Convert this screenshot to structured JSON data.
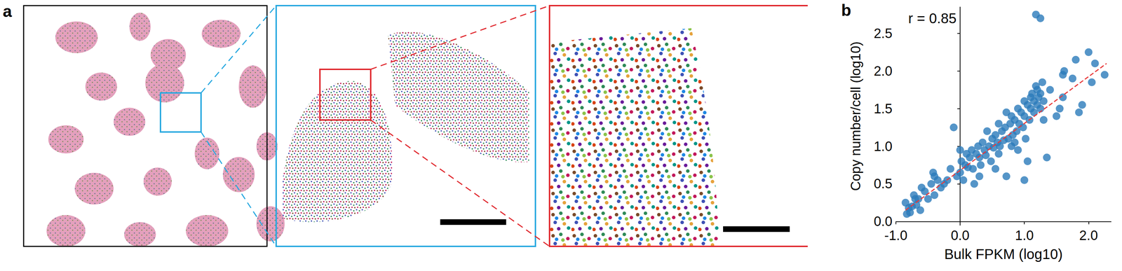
{
  "panel_labels": [
    "a",
    "b"
  ],
  "chart_data": {
    "type": "scatter",
    "x_label": "Bulk FPKM (log10)",
    "y_label": "Copy number/cell (log10)",
    "annotations": [
      "r = 0.85"
    ],
    "color": "#2b7bba",
    "marker": "circle",
    "grid": false,
    "x": [
      -0.85,
      -0.83,
      -0.78,
      -0.75,
      -0.72,
      -0.7,
      -0.68,
      -0.62,
      -0.6,
      -0.55,
      -0.5,
      -0.45,
      -0.42,
      -0.4,
      -0.35,
      -0.3,
      -0.25,
      -0.2,
      -0.15,
      -0.1,
      -0.05,
      0.0,
      0.02,
      0.05,
      0.08,
      0.1,
      0.12,
      0.15,
      0.18,
      0.2,
      0.22,
      0.25,
      0.28,
      0.3,
      0.32,
      0.35,
      0.38,
      0.4,
      0.42,
      0.45,
      0.48,
      0.5,
      0.52,
      0.55,
      0.58,
      0.6,
      0.6,
      0.62,
      0.65,
      0.68,
      0.7,
      0.72,
      0.72,
      0.75,
      0.78,
      0.8,
      0.8,
      0.82,
      0.85,
      0.88,
      0.9,
      0.9,
      0.92,
      0.95,
      0.98,
      1.0,
      1.0,
      1.02,
      1.05,
      1.05,
      1.08,
      1.1,
      1.1,
      1.12,
      1.15,
      1.15,
      1.18,
      1.18,
      1.2,
      1.2,
      1.22,
      1.25,
      1.25,
      1.25,
      1.28,
      1.3,
      1.3,
      1.35,
      1.4,
      1.5,
      1.55,
      1.6,
      1.6,
      1.62,
      1.75,
      1.8,
      1.85,
      1.9,
      2.0,
      2.05,
      2.1,
      2.25,
      -0.8,
      -0.65,
      -0.4,
      0.0,
      0.3,
      0.55,
      0.85,
      1.0
    ],
    "y": [
      0.25,
      0.1,
      0.12,
      0.2,
      0.35,
      0.3,
      0.22,
      0.15,
      0.45,
      0.4,
      0.3,
      0.5,
      0.65,
      0.35,
      0.55,
      0.45,
      0.5,
      0.55,
      0.7,
      1.25,
      0.6,
      0.65,
      0.8,
      0.55,
      0.75,
      0.9,
      0.72,
      0.85,
      0.95,
      0.7,
      0.5,
      0.9,
      1.0,
      0.85,
      0.75,
      1.05,
      0.95,
      0.88,
      1.2,
      1.0,
      0.8,
      1.1,
      0.98,
      1.15,
      1.05,
      0.9,
      1.3,
      1.0,
      1.2,
      1.08,
      1.25,
      0.6,
      1.45,
      1.1,
      1.3,
      1.0,
      1.4,
      1.15,
      1.35,
      1.2,
      1.5,
      0.95,
      1.3,
      1.45,
      1.25,
      1.6,
      1.4,
      1.1,
      1.55,
      0.8,
      1.35,
      1.65,
      1.5,
      1.7,
      1.45,
      1.6,
      1.8,
      2.75,
      1.55,
      1.75,
      1.65,
      2.7,
      1.7,
      1.5,
      1.85,
      1.6,
      1.35,
      0.85,
      1.75,
      1.4,
      1.5,
      1.65,
      1.95,
      2.0,
      1.9,
      2.15,
      1.45,
      1.55,
      2.25,
      1.85,
      2.1,
      1.95,
      0.18,
      0.3,
      0.6,
      0.95,
      0.6,
      0.7,
      1.05,
      0.55
    ],
    "fit_line": {
      "x": [
        -0.85,
        2.28
      ],
      "y": [
        0.15,
        2.1
      ],
      "color": "#e8393a",
      "line_style": "dashed"
    },
    "xlim": [
      -1.0,
      2.35
    ],
    "xticks": [
      {
        "value": -1,
        "label": "-1.0"
      },
      {
        "value": 0,
        "label": "0.0"
      },
      {
        "value": 1,
        "label": "1.0"
      },
      {
        "value": 2,
        "label": "2.0"
      }
    ],
    "ylim": [
      -0.05,
      2.85
    ],
    "yticks": [
      {
        "value": 0,
        "label": "0.0"
      },
      0.5,
      {
        "value": 1,
        "label": "1.0"
      },
      1.5,
      {
        "value": 2,
        "label": "2.0"
      },
      2.5
    ]
  }
}
